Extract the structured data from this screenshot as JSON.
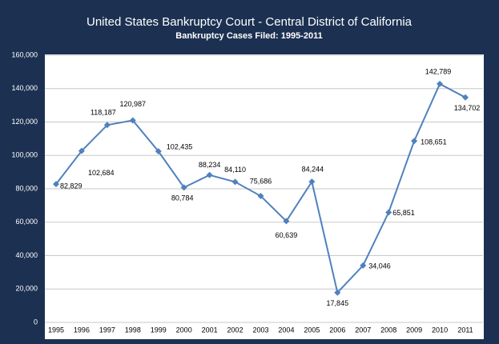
{
  "chart_data": {
    "type": "line",
    "title": "United States Bankruptcy Court - Central District of California",
    "subtitle": "Bankruptcy Cases Filed:  1995-2011",
    "categories": [
      "1995",
      "1996",
      "1997",
      "1998",
      "1999",
      "2000",
      "2001",
      "2002",
      "2003",
      "2004",
      "2005",
      "2006",
      "2007",
      "2008",
      "2009",
      "2010",
      "2011"
    ],
    "values": [
      82829,
      102684,
      118187,
      120987,
      102435,
      80784,
      88234,
      84110,
      75686,
      60639,
      84244,
      17845,
      34046,
      65851,
      108651,
      142789,
      134702
    ],
    "value_labels": [
      "82,829",
      "102,684",
      "118,187",
      "120,987",
      "102,435",
      "80,784",
      "88,234",
      "84,110",
      "75,686",
      "60,639",
      "84,244",
      "17,845",
      "34,046",
      "65,851",
      "108,651",
      "142,789",
      "134,702"
    ],
    "color": "#4f81bd",
    "ylim": [
      0,
      160000
    ],
    "yticks": [
      0,
      {
        "value": 20000,
        "label": "20,000"
      },
      {
        "value": 40000,
        "label": "40,000"
      },
      {
        "value": 60000,
        "label": "60,000"
      },
      {
        "value": 80000,
        "label": "80,000"
      },
      {
        "value": 100000,
        "label": "100,000"
      },
      {
        "value": 120000,
        "label": "120,000"
      },
      {
        "value": 140000,
        "label": "140,000"
      },
      {
        "value": 160000,
        "label": "160,000"
      }
    ],
    "grid": true
  }
}
